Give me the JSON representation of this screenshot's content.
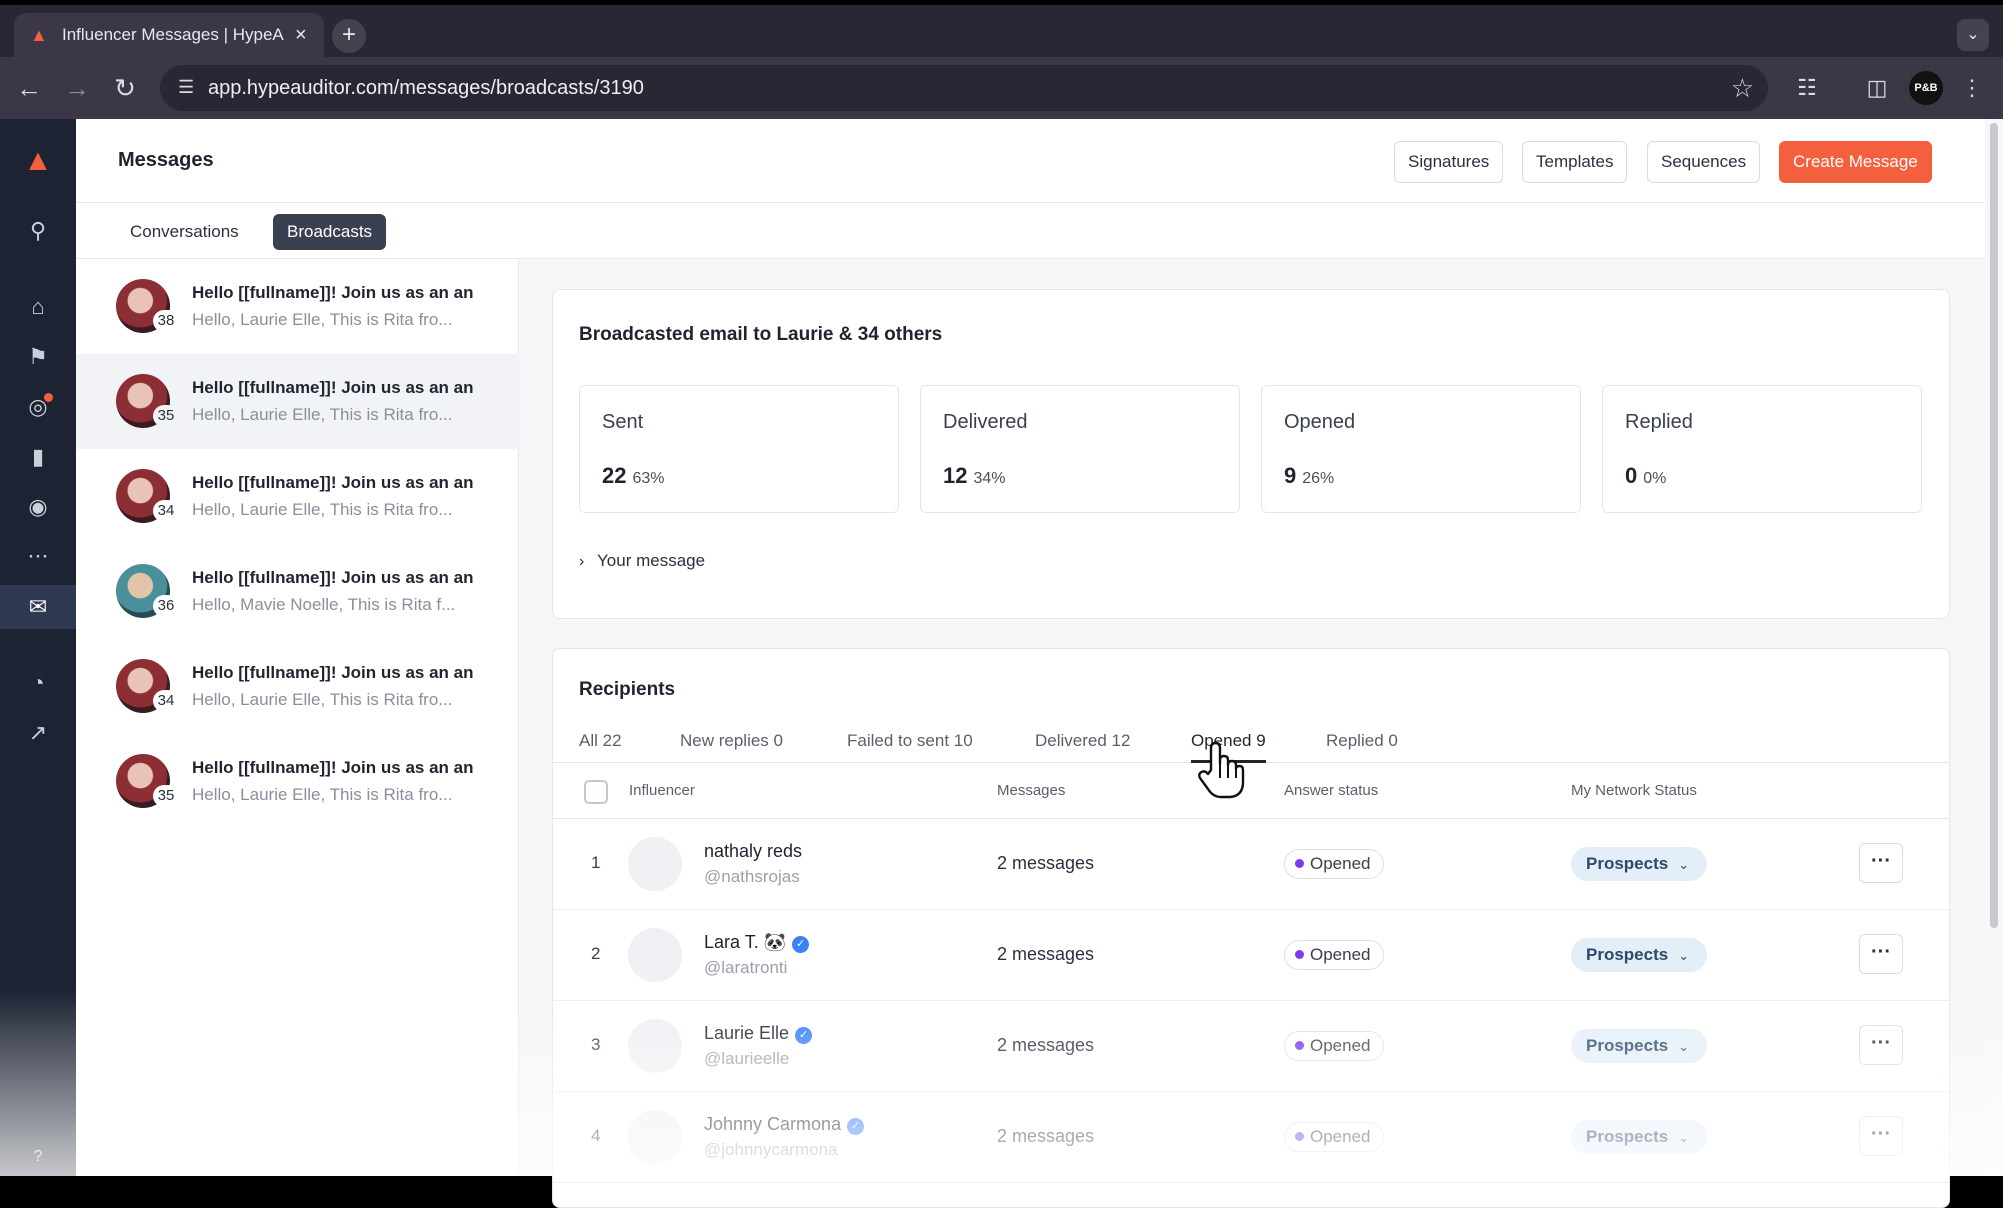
{
  "browser": {
    "tab_title": "Influencer Messages | HypeA",
    "tab_close": "×",
    "new_tab": "+",
    "url": "app.hypeauditor.com/messages/broadcasts/3190",
    "profile": "P&B"
  },
  "header": {
    "title": "Messages",
    "buttons": {
      "signatures": "Signatures",
      "templates": "Templates",
      "sequences": "Sequences",
      "create": "Create Message"
    }
  },
  "subtabs": {
    "conversations": "Conversations",
    "broadcasts": "Broadcasts"
  },
  "conversations": [
    {
      "subject": "Hello [[fullname]]! Join us as an an",
      "preview": "Hello,  Laurie Elle, This is Rita fro...",
      "count": "38"
    },
    {
      "subject": "Hello [[fullname]]! Join us as an an",
      "preview": "Hello,  Laurie Elle, This is Rita fro...",
      "count": "35"
    },
    {
      "subject": "Hello [[fullname]]! Join us as an an",
      "preview": "Hello,  Laurie Elle, This is Rita fro...",
      "count": "34"
    },
    {
      "subject": "Hello [[fullname]]! Join us as an an",
      "preview": "Hello,  Mavie Noelle, This is Rita f...",
      "count": "36"
    },
    {
      "subject": "Hello [[fullname]]! Join us as an an",
      "preview": "Hello,  Laurie Elle, This is Rita fro...",
      "count": "34"
    },
    {
      "subject": "Hello [[fullname]]! Join us as an an",
      "preview": "Hello,  Laurie Elle, This is Rita fro...",
      "count": "35"
    }
  ],
  "summary": {
    "heading": "Broadcasted email to Laurie & 34 others",
    "stats": [
      {
        "label": "Sent",
        "value": "22",
        "pct": "63%"
      },
      {
        "label": "Delivered",
        "value": "12",
        "pct": "34%"
      },
      {
        "label": "Opened",
        "value": "9",
        "pct": "26%"
      },
      {
        "label": "Replied",
        "value": "0",
        "pct": "0%"
      }
    ],
    "your_message": "Your message"
  },
  "recipients": {
    "heading": "Recipients",
    "filters": [
      "All 22",
      "New replies 0",
      "Failed to sent 10",
      "Delivered 12",
      "Opened 9",
      "Replied 0"
    ],
    "active_filter": "Opened 9",
    "columns": {
      "influencer": "Influencer",
      "messages": "Messages",
      "answer": "Answer status",
      "network": "My Network Status"
    },
    "rows": [
      {
        "idx": "1",
        "name": "nathaly reds",
        "emoji": "",
        "verified": false,
        "handle": "@nathsrojas",
        "messages": "2 messages",
        "answer": "Opened",
        "network": "Prospects"
      },
      {
        "idx": "2",
        "name": "Lara T.",
        "emoji": "🐼",
        "verified": true,
        "handle": "@laratronti",
        "messages": "2 messages",
        "answer": "Opened",
        "network": "Prospects"
      },
      {
        "idx": "3",
        "name": "Laurie Elle",
        "emoji": "",
        "verified": true,
        "handle": "@laurieelle",
        "messages": "2 messages",
        "answer": "Opened",
        "network": "Prospects"
      },
      {
        "idx": "4",
        "name": "Johnny Carmona",
        "emoji": "",
        "verified": true,
        "handle": "@johnnycarmona",
        "messages": "2 messages",
        "answer": "Opened",
        "network": "Prospects"
      }
    ],
    "more": "···"
  },
  "colors": {
    "accent": "#f4603e",
    "rail": "#1d2333",
    "status_dot": "#7c3aed",
    "verified": "#3b82f6"
  }
}
